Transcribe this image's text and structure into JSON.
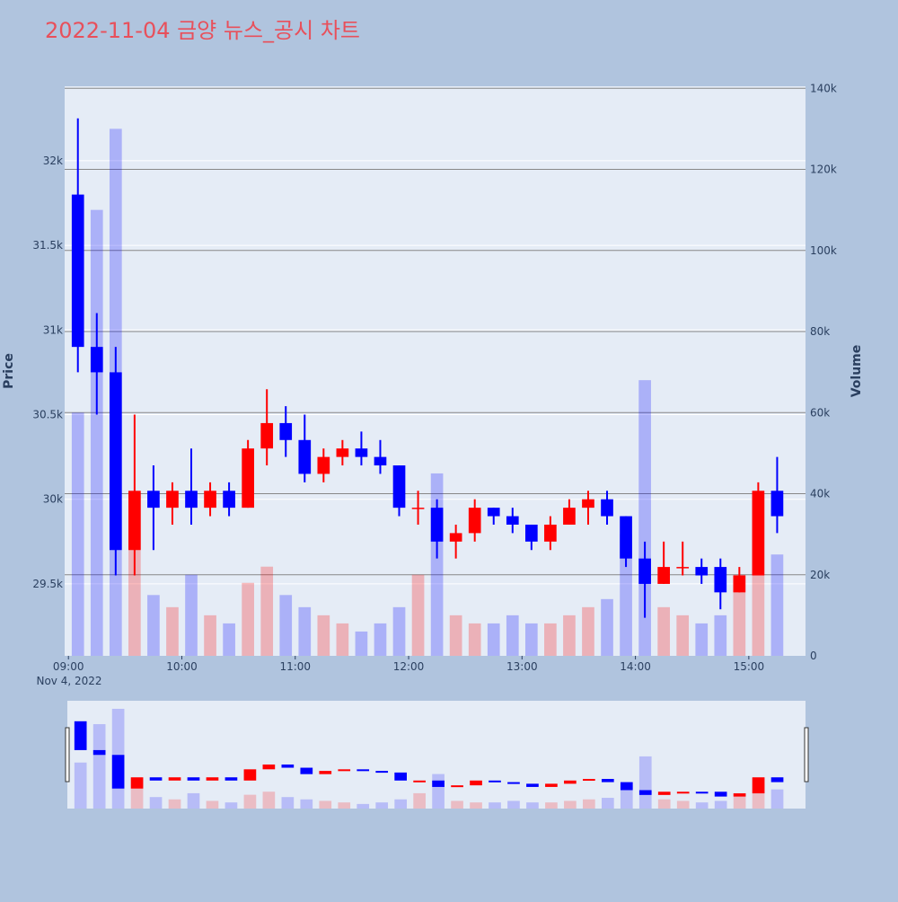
{
  "chart_data": {
    "type": "candlestick",
    "title": "2022-11-04 금양 뉴스_공시 차트",
    "y_title": "Price",
    "y2_title": "Volume",
    "x_date_label": "Nov 4, 2022",
    "up_color": "#ff0000",
    "down_color": "#0000ff",
    "xlim": [
      "2022-11-04 08:58",
      "2022-11-04 15:30"
    ],
    "xticks": [
      {
        "value": "2022-11-04 09:00",
        "label": "09:00"
      },
      {
        "value": "2022-11-04 10:00",
        "label": "10:00"
      },
      {
        "value": "2022-11-04 11:00",
        "label": "11:00"
      },
      {
        "value": "2022-11-04 12:00",
        "label": "12:00"
      },
      {
        "value": "2022-11-04 13:00",
        "label": "13:00"
      },
      {
        "value": "2022-11-04 14:00",
        "label": "14:00"
      },
      {
        "value": "2022-11-04 15:00",
        "label": "15:00"
      }
    ],
    "ylim": [
      29075,
      32440
    ],
    "yticks": [
      {
        "value": 29500,
        "label": "29.5k"
      },
      {
        "value": 30000,
        "label": "30k"
      },
      {
        "value": 30500,
        "label": "30.5k"
      },
      {
        "value": 31000,
        "label": "31k"
      },
      {
        "value": 31500,
        "label": "31.5k"
      },
      {
        "value": 32000,
        "label": "32k"
      }
    ],
    "y2lim": [
      0,
      140500
    ],
    "y2ticks": [
      0,
      {
        "value": 20000,
        "label": "20k"
      },
      {
        "value": 40000,
        "label": "40k"
      },
      {
        "value": 60000,
        "label": "60k"
      },
      {
        "value": 80000,
        "label": "80k"
      },
      {
        "value": 100000,
        "label": "100k"
      },
      {
        "value": 120000,
        "label": "120k"
      },
      {
        "value": 140000,
        "label": "140k"
      }
    ],
    "x": [
      "2022-11-04 09:05",
      "2022-11-04 09:15",
      "2022-11-04 09:25",
      "2022-11-04 09:35",
      "2022-11-04 09:45",
      "2022-11-04 09:55",
      "2022-11-04 10:05",
      "2022-11-04 10:15",
      "2022-11-04 10:25",
      "2022-11-04 10:35",
      "2022-11-04 10:45",
      "2022-11-04 10:55",
      "2022-11-04 11:05",
      "2022-11-04 11:15",
      "2022-11-04 11:25",
      "2022-11-04 11:35",
      "2022-11-04 11:45",
      "2022-11-04 11:55",
      "2022-11-04 12:05",
      "2022-11-04 12:15",
      "2022-11-04 12:25",
      "2022-11-04 12:35",
      "2022-11-04 12:45",
      "2022-11-04 12:55",
      "2022-11-04 13:05",
      "2022-11-04 13:15",
      "2022-11-04 13:25",
      "2022-11-04 13:35",
      "2022-11-04 13:45",
      "2022-11-04 13:55",
      "2022-11-04 14:05",
      "2022-11-04 14:15",
      "2022-11-04 14:25",
      "2022-11-04 14:35",
      "2022-11-04 14:45",
      "2022-11-04 14:55",
      "2022-11-04 15:05",
      "2022-11-04 15:15"
    ],
    "open": [
      31800,
      30900,
      30750,
      29700,
      30050,
      29950,
      30050,
      29950,
      30050,
      29950,
      30300,
      30450,
      30350,
      30150,
      30250,
      30300,
      30250,
      30200,
      29950,
      29950,
      29750,
      29800,
      29950,
      29900,
      29850,
      29750,
      29850,
      29950,
      30000,
      29900,
      29650,
      29500,
      29600,
      29600,
      29600,
      29450,
      29550,
      30050
    ],
    "high": [
      32250,
      31100,
      30900,
      30500,
      30200,
      30100,
      30300,
      30100,
      30100,
      30350,
      30650,
      30550,
      30500,
      30300,
      30350,
      30400,
      30350,
      30200,
      30050,
      30000,
      29850,
      30000,
      29950,
      29950,
      29850,
      29900,
      30000,
      30050,
      30050,
      29900,
      29750,
      29750,
      29750,
      29650,
      29650,
      29600,
      30100,
      30250
    ],
    "low": [
      30750,
      30500,
      29550,
      29550,
      29700,
      29850,
      29850,
      29900,
      29900,
      29950,
      30200,
      30250,
      30100,
      30100,
      30200,
      30200,
      30150,
      29900,
      29850,
      29650,
      29650,
      29750,
      29850,
      29800,
      29700,
      29700,
      29850,
      29850,
      29850,
      29600,
      29300,
      29500,
      29550,
      29500,
      29350,
      29450,
      29550,
      29800
    ],
    "close": [
      30900,
      30750,
      29700,
      30050,
      29950,
      30050,
      29950,
      30050,
      29950,
      30300,
      30450,
      30350,
      30150,
      30250,
      30300,
      30250,
      30200,
      29950,
      29950,
      29750,
      29800,
      29950,
      29900,
      29850,
      29750,
      29850,
      29950,
      30000,
      29900,
      29650,
      29500,
      29600,
      29600,
      29550,
      29450,
      29550,
      30050,
      29900
    ],
    "volume": [
      60000,
      110000,
      130000,
      40000,
      15000,
      12000,
      20000,
      10000,
      8000,
      18000,
      22000,
      15000,
      12000,
      10000,
      8000,
      6000,
      8000,
      12000,
      20000,
      45000,
      10000,
      8000,
      8000,
      10000,
      8000,
      8000,
      10000,
      12000,
      14000,
      30000,
      68000,
      12000,
      10000,
      8000,
      10000,
      20000,
      40000,
      25000
    ]
  }
}
